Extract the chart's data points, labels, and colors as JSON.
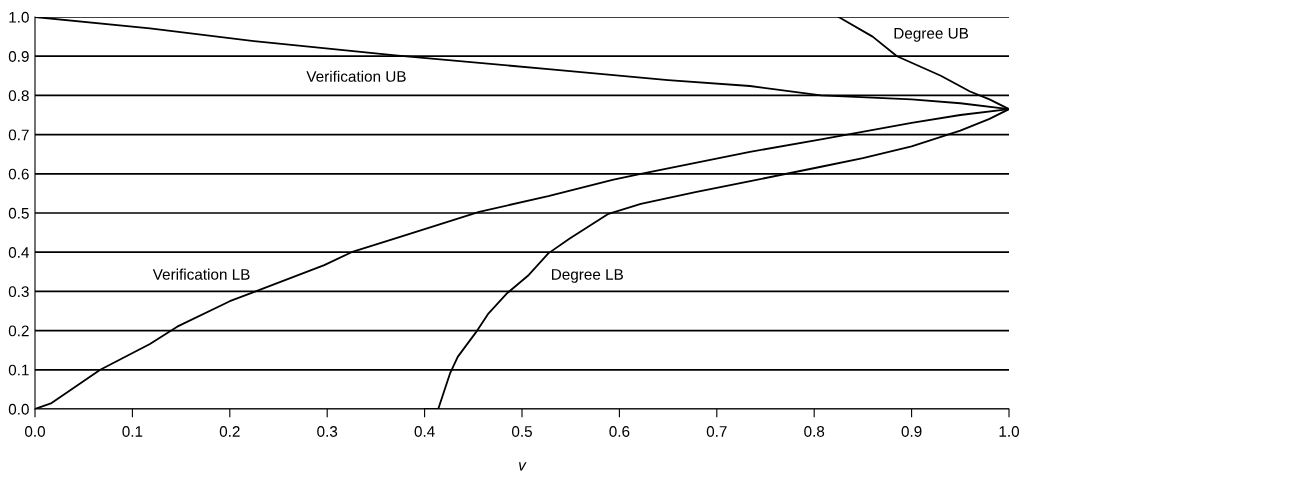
{
  "chart_data": {
    "type": "line",
    "xlabel": "v",
    "xlim": [
      0,
      1
    ],
    "ylim": [
      0,
      1
    ],
    "xticks": [
      {
        "value": 0,
        "label": "0.0"
      },
      0.1,
      0.2,
      0.3,
      0.4,
      0.5,
      0.6,
      0.7,
      0.8,
      0.9,
      {
        "value": 1,
        "label": "1.0"
      }
    ],
    "yticks": [
      {
        "value": 0,
        "label": "0.0"
      },
      0.1,
      0.2,
      0.3,
      0.4,
      0.5,
      0.6,
      0.7,
      0.8,
      0.9,
      {
        "value": 1,
        "label": "1.0"
      }
    ],
    "grid": "y",
    "marker": "none",
    "line_style": "solid",
    "series": [
      {
        "color": "#000000",
        "x": [
          0,
          0.118,
          0.23,
          0.37,
          0.527,
          0.65,
          0.734,
          0.807,
          0.9,
          0.95,
          1.0
        ],
        "values": [
          1.0,
          0.971,
          0.937,
          0.902,
          0.867,
          0.839,
          0.824,
          0.8,
          0.79,
          0.78,
          0.765
        ]
      },
      {
        "color": "#000000",
        "x": [
          0,
          0.017,
          0.067,
          0.118,
          0.146,
          0.2,
          0.297,
          0.325,
          0.37,
          0.456,
          0.527,
          0.594,
          0.622,
          0.678,
          0.734,
          0.807,
          0.9,
          0.95,
          1.0
        ],
        "values": [
          0,
          0.015,
          0.1,
          0.166,
          0.21,
          0.275,
          0.367,
          0.4,
          0.435,
          0.503,
          0.543,
          0.585,
          0.6,
          0.628,
          0.656,
          0.688,
          0.73,
          0.75,
          0.765
        ]
      },
      {
        "color": "#000000",
        "x": [
          0.4,
          0.414,
          0.426,
          0.434,
          0.454,
          0.465,
          0.485,
          0.507,
          0.527,
          0.549,
          0.588,
          0.622,
          0.678,
          0.728,
          0.807,
          0.85,
          0.9,
          0.95,
          0.98,
          1.0
        ],
        "values": [
          0,
          0.0,
          0.09,
          0.133,
          0.2,
          0.242,
          0.296,
          0.342,
          0.397,
          0.435,
          0.497,
          0.523,
          0.553,
          0.578,
          0.618,
          0.64,
          0.67,
          0.71,
          0.74,
          0.765
        ]
      },
      {
        "color": "#000000",
        "x": [
          0.825,
          0.86,
          0.885,
          0.93,
          0.96,
          0.98,
          1.0
        ],
        "values": [
          1.0,
          0.95,
          0.9,
          0.85,
          0.81,
          0.79,
          0.765
        ]
      }
    ],
    "annotations": [
      "Verification UB",
      "Verification LB",
      "Degree LB",
      "Degree UB"
    ]
  }
}
